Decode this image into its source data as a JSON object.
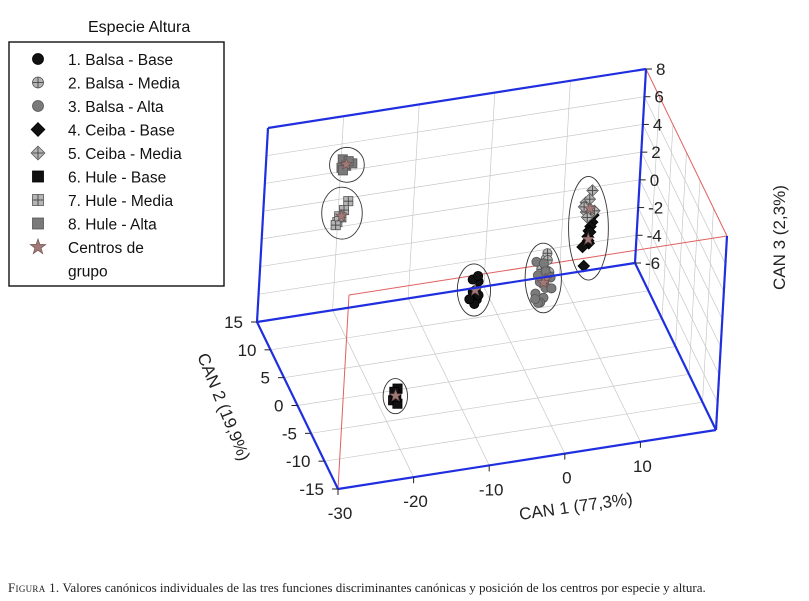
{
  "caption": {
    "label": "Figura 1.",
    "text": "Valores canónicos individuales de las tres funciones discriminantes canónicas y posición de los centros por especie y altura."
  },
  "chart_data": {
    "type": "scatter",
    "projection": "3d",
    "title": "",
    "legend": {
      "title": "Especie Altura",
      "placement": "top-left",
      "entries": [
        {
          "label": "1. Balsa - Base",
          "marker": "circle",
          "color": "#111111"
        },
        {
          "label": "2. Balsa - Media",
          "marker": "circle-cross",
          "color": "#b5b5b5"
        },
        {
          "label": "3. Balsa - Alta",
          "marker": "circle",
          "color": "#7a7a7a"
        },
        {
          "label": "4. Ceiba - Base",
          "marker": "diamond",
          "color": "#111111"
        },
        {
          "label": "5. Ceiba - Media",
          "marker": "diamond-cross",
          "color": "#b5b5b5"
        },
        {
          "label": "6. Hule - Base",
          "marker": "square",
          "color": "#111111"
        },
        {
          "label": "7. Hule - Media",
          "marker": "square-cross",
          "color": "#b5b5b5"
        },
        {
          "label": "8. Hule - Alta",
          "marker": "square",
          "color": "#7a7a7a"
        },
        {
          "label": "Centros de",
          "marker": "star",
          "color": "#a07a78"
        },
        {
          "label": "grupo",
          "marker": "none",
          "color": ""
        }
      ]
    },
    "axes": {
      "x": {
        "label": "CAN 1 (77,3%)",
        "range": [
          -30,
          20
        ],
        "ticks": [
          "-30",
          "-20",
          "-10",
          "0",
          "10"
        ]
      },
      "y": {
        "label": "CAN 2 (19,9%)",
        "range": [
          -15,
          15
        ],
        "ticks": [
          "15",
          "10",
          "5",
          "0",
          "-5",
          "-10",
          "-15"
        ]
      },
      "z": {
        "label": "CAN 3 (2,3%)",
        "range": [
          -6,
          8
        ],
        "ticks": [
          "8",
          "6",
          "4",
          "2",
          "0",
          "-2",
          "-4",
          "-6"
        ]
      }
    },
    "colors": {
      "frame": "#1f2fe0",
      "back_edges": "#e06060",
      "grid": "#c8c8c8",
      "centroid": "#a07a78"
    },
    "groups": [
      {
        "name": "1. Balsa - Base",
        "marker": "circle",
        "color": "#111111",
        "points": [
          [
            -8.6,
            -2.8,
            1.5
          ],
          [
            -8.4,
            -2.8,
            1.0
          ],
          [
            -8.2,
            -2.8,
            1.6
          ],
          [
            -8.0,
            -2.8,
            0.9
          ],
          [
            -7.9,
            -2.8,
            2.2
          ],
          [
            -8.7,
            -2.8,
            2.4
          ],
          [
            -8.0,
            -2.8,
            2.6
          ],
          [
            -8.3,
            -2.8,
            0.6
          ],
          [
            -8.5,
            -2.8,
            1.3
          ],
          [
            -7.8,
            -2.8,
            1.2
          ],
          [
            -9.0,
            -2.8,
            1.0
          ]
        ],
        "center": [
          -8.3,
          -2.8,
          1.6
        ]
      },
      {
        "name": "2. Balsa - Media",
        "marker": "circle-cross",
        "color": "#b5b5b5",
        "points": [
          [
            1.4,
            -1.5,
            2.5
          ],
          [
            1.6,
            -1.5,
            2.9
          ],
          [
            1.2,
            -1.5,
            2.0
          ],
          [
            0.9,
            -1.5,
            1.8
          ],
          [
            1.8,
            -1.5,
            1.6
          ],
          [
            2.0,
            -1.5,
            1.5
          ],
          [
            1.5,
            -1.5,
            0.6
          ],
          [
            1.1,
            -1.5,
            0.8
          ],
          [
            1.7,
            -1.5,
            2.4
          ]
        ],
        "center": [
          1.5,
          -1.5,
          1.0
        ]
      },
      {
        "name": "3. Balsa - Alta",
        "marker": "circle",
        "color": "#7a7a7a",
        "points": [
          [
            0.2,
            -1.5,
            2.4
          ],
          [
            1.2,
            -1.5,
            2.2
          ],
          [
            0.5,
            -1.5,
            1.4
          ],
          [
            1.5,
            -1.5,
            1.6
          ],
          [
            0.8,
            -1.5,
            0.9
          ],
          [
            2.2,
            -1.5,
            1.1
          ],
          [
            1.6,
            -1.5,
            0.4
          ],
          [
            0.3,
            -1.5,
            0.1
          ],
          [
            1.4,
            -1.5,
            -0.3
          ],
          [
            1.0,
            -1.5,
            -0.6
          ],
          [
            0.7,
            -1.5,
            -0.6
          ],
          [
            0.3,
            -1.5,
            -0.3
          ],
          [
            2.4,
            -1.5,
            0.3
          ]
        ],
        "center": [
          1.3,
          -1.5,
          0.8
        ]
      },
      {
        "name": "4. Ceiba - Base",
        "marker": "diamond",
        "color": "#111111",
        "points": [
          [
            7.4,
            -1.6,
            5.2
          ],
          [
            7.3,
            -1.6,
            4.7
          ],
          [
            7.1,
            -1.6,
            4.4
          ],
          [
            6.9,
            -1.6,
            4.1
          ],
          [
            6.8,
            -1.6,
            3.7
          ],
          [
            7.0,
            -1.6,
            3.2
          ],
          [
            6.2,
            -1.6,
            3.0
          ],
          [
            6.9,
            -1.6,
            3.4
          ],
          [
            7.1,
            -1.6,
            4.0
          ],
          [
            6.5,
            -1.6,
            1.6
          ]
        ],
        "center": [
          6.9,
          -1.6,
          3.5
        ]
      },
      {
        "name": "5. Ceiba - Media",
        "marker": "diamond-cross",
        "color": "#b5b5b5",
        "points": [
          [
            7.1,
            -1.6,
            7.0
          ],
          [
            6.3,
            -1.6,
            6.2
          ],
          [
            6.8,
            -1.6,
            6.4
          ],
          [
            6.9,
            -1.6,
            5.7
          ],
          [
            6.4,
            -1.6,
            5.5
          ],
          [
            7.2,
            -1.6,
            5.4
          ],
          [
            7.0,
            -1.6,
            5.3
          ],
          [
            6.6,
            -1.6,
            5.1
          ],
          [
            7.5,
            -1.6,
            5.5
          ],
          [
            6.1,
            -1.6,
            5.9
          ]
        ],
        "center": [
          6.9,
          -1.6,
          5.7
        ]
      },
      {
        "name": "6. Hule - Base",
        "marker": "square",
        "color": "#111111",
        "points": [
          [
            -20.2,
            -8.5,
            -2.2
          ],
          [
            -20.4,
            -8.5,
            -2.6
          ],
          [
            -20.7,
            -8.5,
            -3.0
          ],
          [
            -20.1,
            -8.5,
            -3.3
          ],
          [
            -20.3,
            -8.5,
            -2.8
          ],
          [
            -20.6,
            -8.5,
            -2.4
          ]
        ],
        "center": [
          -20.4,
          -8.5,
          -2.7
        ]
      },
      {
        "name": "7. Hule - Media",
        "marker": "square-cross",
        "color": "#b5b5b5",
        "points": [
          [
            -23.2,
            3.9,
            6.6
          ],
          [
            -23.7,
            3.9,
            6.0
          ],
          [
            -24.0,
            3.9,
            5.5
          ],
          [
            -24.5,
            3.9,
            5.2
          ],
          [
            -24.7,
            3.9,
            5.0
          ],
          [
            -24.3,
            3.9,
            5.6
          ]
        ],
        "center": [
          -24.0,
          3.9,
          5.6
        ]
      },
      {
        "name": "8. Hule - Alta",
        "marker": "square",
        "color": "#7a7a7a",
        "points": [
          [
            -22.2,
            8.5,
            7.4
          ],
          [
            -22.4,
            8.5,
            7.7
          ],
          [
            -22.5,
            8.5,
            7.1
          ],
          [
            -21.9,
            8.5,
            7.2
          ],
          [
            -21.1,
            8.5,
            7.3
          ],
          [
            -22.3,
            8.5,
            6.9
          ],
          [
            -21.6,
            8.5,
            7.5
          ]
        ],
        "center": [
          -21.9,
          8.5,
          7.3
        ]
      }
    ]
  }
}
